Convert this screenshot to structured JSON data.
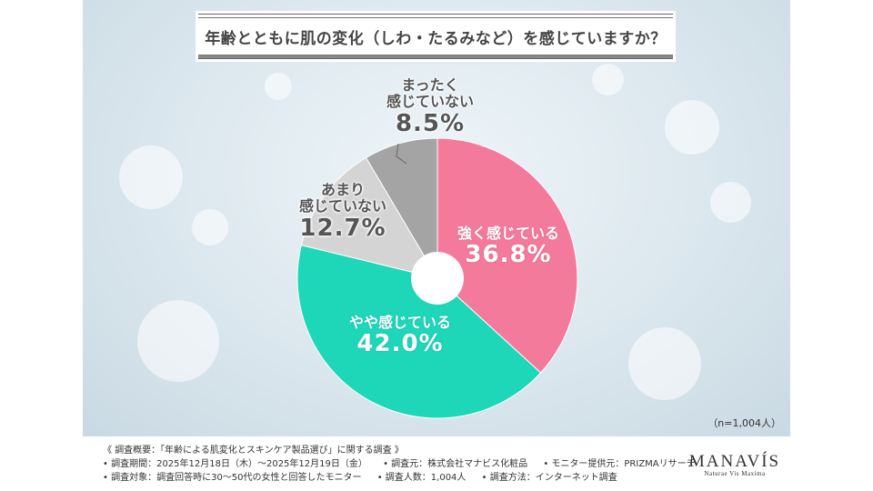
{
  "title": "年齢とともに肌の変化（しわ・たるみなど）を感じていますか？",
  "sample_note": "（n=1,004人）",
  "chart_data": {
    "type": "pie",
    "donut": true,
    "title": "年齢とともに肌の変化（しわ・たるみなど）を感じていますか？",
    "slices": [
      {
        "label": "強く感じている",
        "value": 36.8,
        "display": "36.8%",
        "color": "#f47a9c"
      },
      {
        "label": "やや感じている",
        "value": 42.0,
        "display": "42.0%",
        "color": "#1ed6b8"
      },
      {
        "label": "あまり 感じていない",
        "value": 12.7,
        "display": "12.7%",
        "color": "#d4d4d4"
      },
      {
        "label": "まったく 感じていない",
        "value": 8.5,
        "display": "8.5%",
        "color": "#a4a4a4"
      }
    ],
    "start": "12 o'clock",
    "direction": "clockwise"
  },
  "labels": {
    "strong": {
      "line1": "強く感じている",
      "pct": "36.8%"
    },
    "somewhat": {
      "line1": "やや感じている",
      "pct": "42.0%"
    },
    "not_much": {
      "line1": "あまり",
      "line2": "感じていない",
      "pct": "12.7%"
    },
    "not_at_all": {
      "line1": "まったく",
      "line2": "感じていない",
      "pct": "8.5%"
    }
  },
  "footer": {
    "overview": "《 調査概要：「年齢による肌変化とスキンケア製品選び」に関する調査 》",
    "period": "• 調査期間：2025年12月18日（木）～2025年12月19日（金）",
    "source": "• 調査元：株式会社マナビス化粧品",
    "monitor": "• モニター提供元：PRIZMAリサーチ",
    "target": "• 調査対象：調査回答時に30～50代の女性と回答したモニター",
    "count": "• 調査人数：1,004人",
    "method": "• 調査方法：インターネット調査"
  },
  "brand": {
    "logo": "MANAVÍS",
    "tagline": "Naturae Vis Maxima"
  }
}
